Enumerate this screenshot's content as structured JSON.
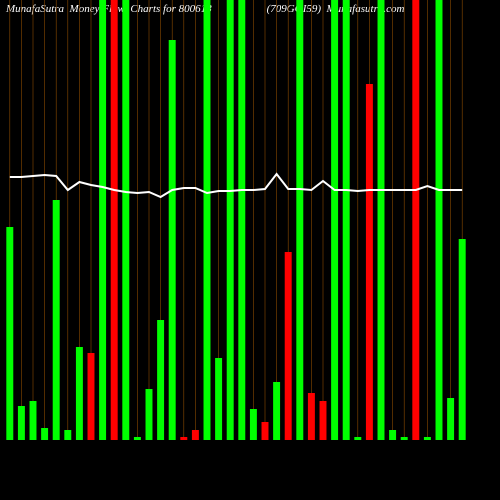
{
  "chart_data": {
    "type": "bar",
    "title": "MunafaSutra  Money Flow  Charts for 800618                    (709GOI59)  Munafasutra.com",
    "categories": [
      null,
      null,
      null,
      null,
      null,
      null,
      null,
      null,
      null,
      null,
      null,
      null,
      null,
      null,
      null,
      null,
      null,
      null,
      null,
      null,
      null,
      null,
      null,
      null,
      null,
      null,
      null,
      null,
      null,
      null,
      null,
      null,
      null,
      null,
      null,
      null,
      null,
      null,
      null,
      null
    ],
    "values": [
      213,
      34,
      39,
      12,
      240,
      10,
      93,
      87,
      440,
      440,
      440,
      3,
      51,
      120,
      400,
      3,
      10,
      440,
      82,
      440,
      440,
      31,
      18,
      58,
      188,
      440,
      47,
      39,
      440,
      440,
      3,
      356,
      440,
      10,
      3,
      440,
      3,
      440,
      42,
      201
    ],
    "colors": [
      "#00ff00",
      "#00ff00",
      "#00ff00",
      "#00ff00",
      "#00ff00",
      "#00ff00",
      "#00ff00",
      "#ff0000",
      "#00ff00",
      "#ff0000",
      "#00ff00",
      "#00ff00",
      "#00ff00",
      "#00ff00",
      "#00ff00",
      "#ff0000",
      "#ff0000",
      "#00ff00",
      "#00ff00",
      "#00ff00",
      "#00ff00",
      "#00ff00",
      "#ff0000",
      "#00ff00",
      "#ff0000",
      "#00ff00",
      "#ff0000",
      "#ff0000",
      "#00ff00",
      "#00ff00",
      "#00ff00",
      "#ff0000",
      "#00ff00",
      "#00ff00",
      "#00ff00",
      "#ff0000",
      "#00ff00",
      "#00ff00",
      "#00ff00",
      "#00ff00"
    ],
    "line": {
      "color": "#ffffff",
      "values": [
        263,
        263,
        264,
        265,
        264,
        250,
        258,
        255,
        253,
        250,
        248,
        247,
        248,
        243,
        250,
        252,
        252,
        247,
        249,
        249,
        250,
        250,
        251,
        266,
        251,
        251,
        250,
        259,
        250,
        250,
        249,
        250,
        250,
        250,
        250,
        250,
        254,
        250,
        250,
        250
      ]
    },
    "ylim": [
      0,
      440
    ],
    "grid_color": "#8a4a00"
  }
}
